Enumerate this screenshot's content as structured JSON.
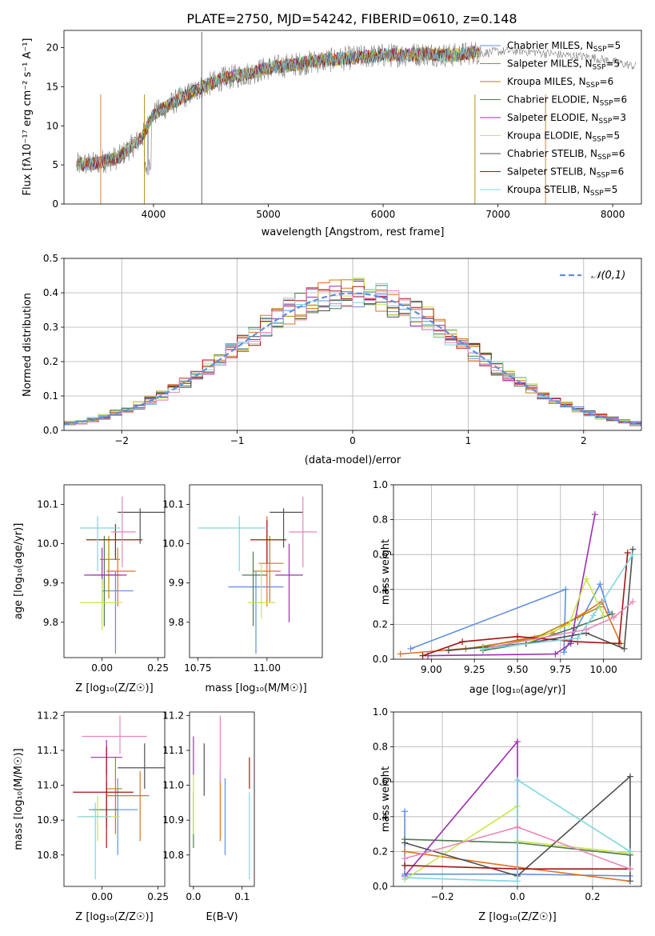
{
  "figure": {
    "title": "PLATE=2750, MJD=54242, FIBERID=0610, z=0.148"
  },
  "palette": {
    "Chabrier MILES": "#5f8fde",
    "Salpeter MILES": "#e0701d",
    "Kroupa MILES": "#b8860b",
    "Chabrier ELODIE": "#4f7a4f",
    "Salpeter ELODIE": "#9b2fae",
    "Kroupa ELODIE": "#c8e64b",
    "Chabrier STELIB": "#505050",
    "Salpeter STELIB": "#a31515",
    "Kroupa STELIB": "#7fd6e0",
    "Pink": "#e887b8",
    "Grey": "#808080"
  },
  "chart_data": [
    {
      "id": "spectrum",
      "type": "line",
      "xlabel": "wavelength [Angstrom, rest frame]",
      "ylabel": "Flux [f_λ 10^-17 erg cm^-2 s^-1 A^-1]",
      "xlim": [
        3220,
        8250
      ],
      "ylim": [
        0,
        22.2
      ],
      "xticks": [
        4000,
        5000,
        6000,
        7000,
        8000
      ],
      "yticks": [
        0,
        5,
        10,
        15,
        20
      ],
      "legend_position": "upper right",
      "legend": [
        "Chabrier MILES, N_SSP=5",
        "Salpeter MILES, N_SSP=5",
        "Kroupa MILES, N_SSP=6",
        "Chabrier ELODIE, N_SSP=6",
        "Salpeter ELODIE, N_SSP=3",
        "Kroupa ELODIE, N_SSP=5",
        "Chabrier STELIB, N_SSP=6",
        "Salpeter STELIB, N_SSP=6",
        "Kroupa STELIB, N_SSP=5"
      ],
      "continuum": {
        "x": [
          3330,
          3500,
          3700,
          3900,
          4000,
          4200,
          4400,
          4600,
          4800,
          5000,
          5200,
          5400,
          5600,
          5800,
          6000,
          6200,
          6400,
          6600,
          6800,
          6850
        ],
        "y": [
          5.0,
          5.2,
          6.0,
          8.5,
          11.5,
          13.2,
          14.8,
          16.0,
          16.6,
          17.4,
          17.8,
          18.2,
          18.5,
          18.8,
          19.0,
          19.1,
          19.2,
          19.0,
          19.4,
          19.3
        ]
      },
      "observed_extension": {
        "x": [
          6850,
          7000,
          7200,
          7400,
          7600,
          7800,
          8000,
          8200
        ],
        "y": [
          19.3,
          19.5,
          19.6,
          19.3,
          19.0,
          18.8,
          18.2,
          17.6
        ]
      },
      "grid": false
    },
    {
      "id": "residuals",
      "type": "histogram",
      "xlabel": "(data-model)/error",
      "ylabel": "Normed distribution",
      "xlim": [
        -2.5,
        2.5
      ],
      "ylim": [
        0,
        0.5
      ],
      "xticks": [
        -2,
        -1,
        0,
        1,
        2
      ],
      "yticks": [
        0.0,
        0.1,
        0.2,
        0.3,
        0.4,
        0.5
      ],
      "bin_width": 0.1,
      "reference": "𝒩(0,1)",
      "legend_position": "upper right",
      "grid": true
    },
    {
      "id": "age_vs_Z",
      "type": "scatter",
      "xlabel": "Z [log10(Z/Z☉)]",
      "ylabel": "age  [log10(age/yr)]",
      "xlim": [
        -0.17,
        0.28
      ],
      "ylim": [
        9.71,
        10.15
      ],
      "xticks": [
        0.0,
        0.25
      ],
      "yticks": [
        9.8,
        9.9,
        10.0,
        10.1
      ],
      "points": [
        {
          "series": "Chabrier MILES",
          "x": 0.06,
          "y": 9.88,
          "xerr": [
            0.06,
            0.08
          ],
          "yerr": [
            0.16,
            0.05
          ]
        },
        {
          "series": "Salpeter MILES",
          "x": 0.07,
          "y": 9.93,
          "xerr": [
            0.05,
            0.08
          ],
          "yerr": [
            0.09,
            0.06
          ]
        },
        {
          "series": "Kroupa MILES",
          "x": 0.03,
          "y": 9.96,
          "xerr": [
            0.04,
            0.05
          ],
          "yerr": [
            0.1,
            0.06
          ]
        },
        {
          "series": "Chabrier ELODIE",
          "x": 0.01,
          "y": 9.92,
          "xerr": [
            0.05,
            0.07
          ],
          "yerr": [
            0.13,
            0.1
          ]
        },
        {
          "series": "Salpeter ELODIE",
          "x": 0.0,
          "y": 9.92,
          "xerr": [
            0.08,
            0.11
          ],
          "yerr": [
            0.07,
            0.07
          ]
        },
        {
          "series": "Kroupa ELODIE",
          "x": 0.0,
          "y": 9.85,
          "xerr": [
            0.1,
            0.09
          ],
          "yerr": [
            0.07,
            0.06
          ]
        },
        {
          "series": "Chabrier STELIB",
          "x": 0.17,
          "y": 10.08,
          "xerr": [
            0.1,
            0.12
          ],
          "yerr": [
            0.08,
            0.01
          ]
        },
        {
          "series": "Salpeter STELIB",
          "x": 0.06,
          "y": 10.01,
          "xerr": [
            0.13,
            0.12
          ],
          "yerr": [
            0.05,
            0.04
          ]
        },
        {
          "series": "Kroupa STELIB",
          "x": -0.02,
          "y": 10.04,
          "xerr": [
            0.08,
            0.1
          ],
          "yerr": [
            0.11,
            0.03
          ]
        },
        {
          "series": "Pink",
          "x": 0.09,
          "y": 10.03,
          "xerr": [
            0.05,
            0.06
          ],
          "yerr": [
            0.09,
            0.09
          ]
        }
      ],
      "grid": false
    },
    {
      "id": "age_vs_mass",
      "type": "scatter",
      "xlabel": "mass [log10(M/M☉)]",
      "ylabel": "",
      "xlim": [
        10.72,
        11.2
      ],
      "ylim": [
        9.71,
        10.15
      ],
      "xticks": [
        10.75,
        11.0
      ],
      "yticks": [
        9.8,
        9.9,
        10.0,
        10.1
      ],
      "points": [
        {
          "series": "Chabrier MILES",
          "x": 10.96,
          "y": 9.89,
          "xerr": [
            0.1,
            0.1
          ],
          "yerr": [
            0.17,
            0.04
          ]
        },
        {
          "series": "Salpeter MILES",
          "x": 11.0,
          "y": 9.93,
          "xerr": [
            0.05,
            0.05
          ],
          "yerr": [
            0.09,
            0.14
          ]
        },
        {
          "series": "Kroupa MILES",
          "x": 11.01,
          "y": 9.95,
          "xerr": [
            0.04,
            0.05
          ],
          "yerr": [
            0.1,
            0.07
          ]
        },
        {
          "series": "Chabrier ELODIE",
          "x": 10.95,
          "y": 9.92,
          "xerr": [
            0.04,
            0.05
          ],
          "yerr": [
            0.13,
            0.06
          ]
        },
        {
          "series": "Salpeter ELODIE",
          "x": 11.08,
          "y": 9.92,
          "xerr": [
            0.05,
            0.05
          ],
          "yerr": [
            0.12,
            0.08
          ]
        },
        {
          "series": "Kroupa ELODIE",
          "x": 10.98,
          "y": 9.85,
          "xerr": [
            0.05,
            0.05
          ],
          "yerr": [
            0.04,
            0.1
          ]
        },
        {
          "series": "Chabrier STELIB",
          "x": 11.06,
          "y": 10.08,
          "xerr": [
            0.05,
            0.07
          ],
          "yerr": [
            0.09,
            0.01
          ]
        },
        {
          "series": "Salpeter STELIB",
          "x": 11.0,
          "y": 10.01,
          "xerr": [
            0.06,
            0.07
          ],
          "yerr": [
            0.06,
            0.05
          ]
        },
        {
          "series": "Kroupa STELIB",
          "x": 10.9,
          "y": 10.04,
          "xerr": [
            0.15,
            0.1
          ],
          "yerr": [
            0.11,
            0.03
          ]
        },
        {
          "series": "Pink",
          "x": 11.13,
          "y": 10.03,
          "xerr": [
            0.05,
            0.05
          ],
          "yerr": [
            0.09,
            0.09
          ]
        }
      ],
      "grid": false
    },
    {
      "id": "weight_vs_age",
      "type": "line",
      "xlabel": "age  [log10(age/yr)]",
      "ylabel": "mass weight",
      "xlim": [
        8.78,
        10.22
      ],
      "ylim": [
        0,
        1
      ],
      "xticks": [
        9.0,
        9.25,
        9.5,
        9.75,
        10.0
      ],
      "yticks": [
        0.0,
        0.2,
        0.4,
        0.6,
        0.8,
        1.0
      ],
      "series": [
        {
          "name": "Chabrier MILES",
          "x": [
            8.88,
            9.78,
            9.77,
            9.98,
            10.03
          ],
          "y": [
            0.06,
            0.4,
            0.04,
            0.43,
            0.27
          ]
        },
        {
          "name": "Salpeter MILES",
          "x": [
            8.82,
            9.3,
            9.7,
            9.99,
            10.1
          ],
          "y": [
            0.03,
            0.07,
            0.15,
            0.33,
            0.09
          ]
        },
        {
          "name": "Kroupa MILES",
          "x": [
            9.2,
            9.6,
            9.85,
            9.98
          ],
          "y": [
            0.06,
            0.12,
            0.24,
            0.3
          ]
        },
        {
          "name": "Chabrier ELODIE",
          "x": [
            9.3,
            9.55,
            9.83,
            10.05
          ],
          "y": [
            0.05,
            0.09,
            0.18,
            0.26
          ]
        },
        {
          "name": "Salpeter ELODIE",
          "x": [
            8.98,
            9.72,
            9.81,
            9.95
          ],
          "y": [
            0.02,
            0.03,
            0.09,
            0.83
          ]
        },
        {
          "name": "Kroupa ELODIE",
          "x": [
            9.55,
            9.8,
            9.9,
            10.0
          ],
          "y": [
            0.09,
            0.2,
            0.46,
            0.25
          ]
        },
        {
          "name": "Chabrier STELIB",
          "x": [
            9.1,
            9.55,
            9.9,
            10.12,
            10.17
          ],
          "y": [
            0.05,
            0.09,
            0.15,
            0.06,
            0.63
          ]
        },
        {
          "name": "Salpeter STELIB",
          "x": [
            8.95,
            9.18,
            9.5,
            9.85,
            10.09,
            10.14
          ],
          "y": [
            0.02,
            0.1,
            0.13,
            0.1,
            0.09,
            0.61
          ]
        },
        {
          "name": "Kroupa STELIB",
          "x": [
            9.3,
            9.85,
            9.94,
            10.17
          ],
          "y": [
            0.06,
            0.12,
            0.25,
            0.6
          ]
        },
        {
          "name": "Pink",
          "x": [
            9.35,
            9.9,
            10.06,
            10.17
          ],
          "y": [
            0.07,
            0.17,
            0.24,
            0.33
          ]
        }
      ],
      "grid": true
    },
    {
      "id": "mass_vs_Z",
      "type": "scatter",
      "xlabel": "Z [log10(Z/Z☉)]",
      "ylabel": "mass [log10(M/M☉)]",
      "xlim": [
        -0.17,
        0.28
      ],
      "ylim": [
        10.71,
        11.21
      ],
      "xticks": [
        0.0,
        0.25
      ],
      "yticks": [
        10.8,
        10.9,
        11.0,
        11.1,
        11.2
      ],
      "points": [
        {
          "series": "Chabrier MILES",
          "x": 0.07,
          "y": 10.93,
          "xerr": [
            0.13,
            0.09
          ],
          "yerr": [
            0.13,
            0.09
          ]
        },
        {
          "series": "Salpeter MILES",
          "x": 0.17,
          "y": 10.97,
          "xerr": [
            0.15,
            0.04
          ],
          "yerr": [
            0.13,
            0.07
          ]
        },
        {
          "series": "Kroupa MILES",
          "x": 0.06,
          "y": 10.99,
          "xerr": [
            0.04,
            0.03
          ],
          "yerr": [
            0.13,
            0.09
          ]
        },
        {
          "series": "Chabrier ELODIE",
          "x": 0.02,
          "y": 10.93,
          "xerr": [
            0.06,
            0.05
          ],
          "yerr": [
            0.05,
            0.08
          ]
        },
        {
          "series": "Salpeter ELODIE",
          "x": 0.02,
          "y": 11.08,
          "xerr": [
            0.07,
            0.07
          ],
          "yerr": [
            0.05,
            0.05
          ]
        },
        {
          "series": "Kroupa ELODIE",
          "x": -0.02,
          "y": 10.91,
          "xerr": [
            0.07,
            0.1
          ],
          "yerr": [
            0.07,
            0.06
          ]
        },
        {
          "series": "Chabrier STELIB",
          "x": 0.19,
          "y": 11.05,
          "xerr": [
            0.12,
            0.1
          ],
          "yerr": [
            0.06,
            0.07
          ]
        },
        {
          "series": "Salpeter STELIB",
          "x": 0.02,
          "y": 10.98,
          "xerr": [
            0.15,
            0.12
          ],
          "yerr": [
            0.16,
            0.13
          ]
        },
        {
          "series": "Kroupa STELIB",
          "x": -0.03,
          "y": 10.91,
          "xerr": [
            0.08,
            0.07
          ],
          "yerr": [
            0.18,
            0.04
          ]
        },
        {
          "series": "Pink",
          "x": 0.08,
          "y": 11.14,
          "xerr": [
            0.17,
            0.12
          ],
          "yerr": [
            0.05,
            0.06
          ]
        }
      ],
      "grid": false
    },
    {
      "id": "mass_vs_EBV",
      "type": "scatter",
      "xlabel": "E(B-V)",
      "ylabel": "",
      "xlim": [
        -0.008,
        0.125
      ],
      "ylim": [
        10.71,
        11.21
      ],
      "xticks": [
        0.0,
        0.1
      ],
      "yticks": [
        10.8,
        10.9,
        11.0,
        11.1,
        11.2
      ],
      "points": [
        {
          "series": "Chabrier MILES",
          "x": 0.065,
          "y": 10.93,
          "yerr": [
            0.13,
            0.09
          ]
        },
        {
          "series": "Salpeter MILES",
          "x": 0.055,
          "y": 10.97,
          "yerr": [
            0.13,
            0.07
          ]
        },
        {
          "series": "Chabrier ELODIE",
          "x": 0.0,
          "y": 10.93,
          "yerr": [
            0.11,
            0.05
          ]
        },
        {
          "series": "Salpeter ELODIE",
          "x": 0.0,
          "y": 11.08,
          "yerr": [
            0.05,
            0.06
          ]
        },
        {
          "series": "Kroupa ELODIE",
          "x": 0.0,
          "y": 10.94,
          "yerr": [
            0.08,
            0.09
          ]
        },
        {
          "series": "Chabrier STELIB",
          "x": 0.022,
          "y": 11.05,
          "yerr": [
            0.08,
            0.07
          ]
        },
        {
          "series": "Salpeter STELIB",
          "x": 0.115,
          "y": 11.04,
          "yerr": [
            0.05,
            0.04
          ]
        },
        {
          "series": "Kroupa STELIB",
          "x": 0.115,
          "y": 10.91,
          "yerr": [
            0.18,
            0.07
          ]
        },
        {
          "series": "Pink",
          "x": 0.055,
          "y": 11.1,
          "yerr": [
            0.09,
            0.1
          ]
        }
      ],
      "grid": false
    },
    {
      "id": "weight_vs_Z",
      "type": "line",
      "xlabel": "Z [log10(Z/Z☉)]",
      "ylabel": "mass weight",
      "xlim": [
        -0.33,
        0.33
      ],
      "ylim": [
        0,
        1
      ],
      "xticks": [
        -0.2,
        0.0,
        0.2
      ],
      "yticks": [
        0.0,
        0.2,
        0.4,
        0.6,
        0.8,
        1.0
      ],
      "series": [
        {
          "name": "Chabrier MILES",
          "x": [
            -0.3,
            -0.3,
            0.0,
            0.3
          ],
          "y": [
            0.43,
            0.07,
            0.07,
            0.06
          ]
        },
        {
          "name": "Salpeter MILES",
          "x": [
            -0.3,
            0.0,
            0.3
          ],
          "y": [
            0.2,
            0.11,
            0.03
          ]
        },
        {
          "name": "Chabrier ELODIE",
          "x": [
            -0.3,
            0.0,
            0.3
          ],
          "y": [
            0.27,
            0.25,
            0.18
          ]
        },
        {
          "name": "Salpeter ELODIE",
          "x": [
            -0.3,
            0.0,
            0.0
          ],
          "y": [
            0.06,
            0.83,
            0.06
          ]
        },
        {
          "name": "Kroupa ELODIE",
          "x": [
            -0.3,
            0.0,
            0.0,
            0.3
          ],
          "y": [
            0.04,
            0.46,
            0.26,
            0.19
          ]
        },
        {
          "name": "Chabrier STELIB",
          "x": [
            -0.3,
            0.0,
            0.3,
            0.3
          ],
          "y": [
            0.25,
            0.06,
            0.63,
            0.03
          ]
        },
        {
          "name": "Salpeter STELIB",
          "x": [
            -0.3,
            0.0,
            0.3
          ],
          "y": [
            0.12,
            0.1,
            0.1
          ]
        },
        {
          "name": "Kroupa STELIB",
          "x": [
            -0.3,
            0.0,
            0.0,
            0.3
          ],
          "y": [
            0.05,
            0.03,
            0.61,
            0.2
          ]
        },
        {
          "name": "Pink",
          "x": [
            -0.3,
            0.0,
            0.3
          ],
          "y": [
            0.16,
            0.34,
            0.1
          ]
        }
      ],
      "grid": true
    }
  ],
  "labels": {
    "spectrum_xlabel": "wavelength [Angstrom, rest frame]",
    "spectrum_ylabel": "Flux [f λ 10^-17 erg cm^-2 s^-1 A^-1]",
    "hist_xlabel": "(data-model)/error",
    "hist_ylabel": "Normed distribution",
    "hist_legend": "𝒩(0,1)",
    "age_ylabel": "age  [log₁₀(age/yr)]",
    "Z_xlabel": "Z [log₁₀(Z/Z☉)]",
    "mass_xlabel": "mass [log₁₀(M/M☉)]",
    "age_xlabel": "age  [log₁₀(age/yr)]",
    "weight_ylabel": "mass weight",
    "mass_ylabel": "mass [log₁₀(M/M☉)]",
    "ebv_xlabel": "E(B-V)"
  }
}
